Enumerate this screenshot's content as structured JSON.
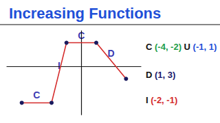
{
  "chart_data": {
    "type": "line",
    "title": "Increasing Functions",
    "x": [
      -4,
      -2,
      -1,
      1,
      3
    ],
    "values": [
      -3,
      -3,
      2,
      2,
      -1
    ],
    "color": "#d42a2a",
    "marker": "circle",
    "xlim": [
      -5,
      4
    ],
    "ylim": [
      -4,
      3
    ],
    "grid": false,
    "tick_labels": false,
    "annotations": [
      {
        "text": "C",
        "x": -3,
        "y": -3
      },
      {
        "text": "I",
        "x": -1.5,
        "y": -0.5
      },
      {
        "text": "C",
        "x": 0,
        "y": 2
      },
      {
        "text": "D",
        "x": 2,
        "y": 0.5
      }
    ],
    "text_lines": [
      [
        {
          "text": "C",
          "color": "#111111"
        },
        {
          "text": "(-4, -2)",
          "color": "#1e9e4a"
        },
        {
          "text": "U",
          "color": "#111111"
        },
        {
          "text": "(-1, 1)",
          "color": "#1f4fd8"
        }
      ],
      [
        {
          "text": "D",
          "color": "#111111"
        },
        {
          "text": "(1, 3)",
          "color": "#1a1a6e"
        }
      ],
      [
        {
          "text": "I",
          "color": "#111111"
        },
        {
          "text": "(-2, -1)",
          "color": "#d42a2a"
        }
      ]
    ]
  }
}
